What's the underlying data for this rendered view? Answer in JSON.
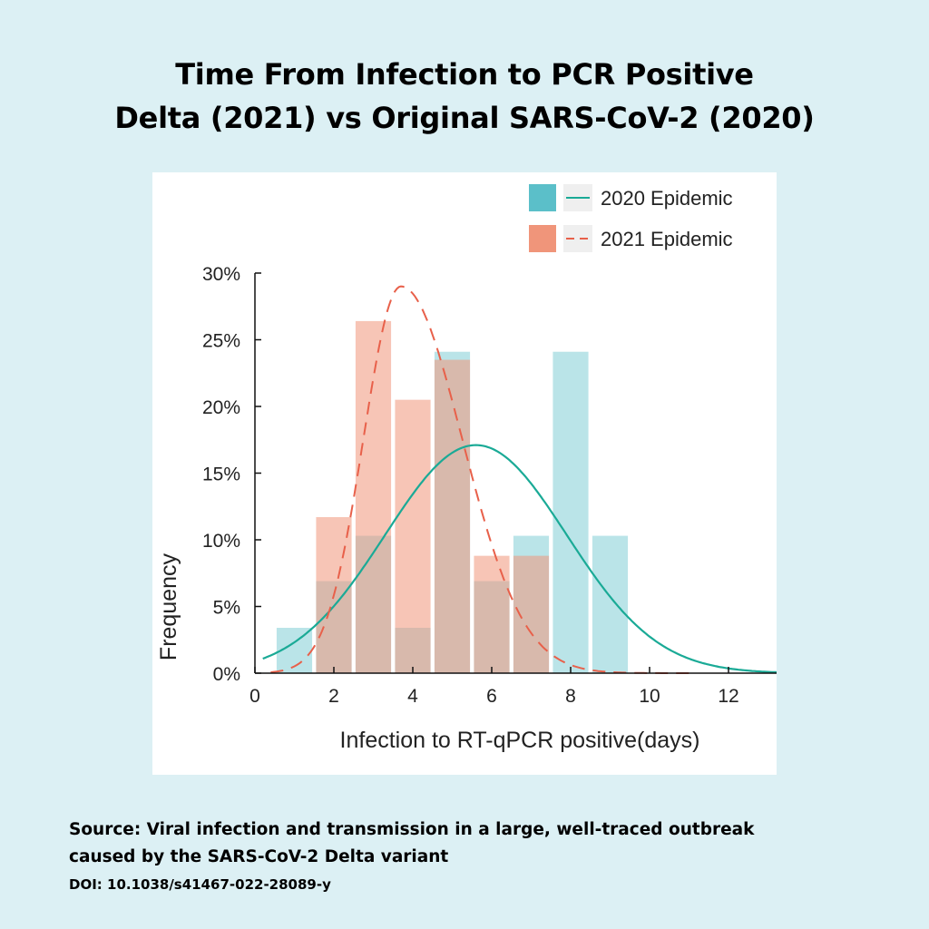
{
  "header": {
    "title_line1": "Time From Infection to PCR Positive",
    "title_line2": "Delta (2021) vs Original SARS-CoV-2 (2020)"
  },
  "footer": {
    "source_line1": "Source: Viral infection and transmission in a large, well-traced outbreak",
    "source_line2": "caused by the SARS-CoV-2 Delta variant",
    "doi": "DOI: 10.1038/s41467-022-28089-y"
  },
  "chart_data": {
    "type": "bar",
    "xlabel": "Infection to RT-qPCR positive(days)",
    "ylabel": "Frequency",
    "xlim": [
      0,
      13.3
    ],
    "ylim": [
      0,
      30
    ],
    "xticks": [
      0,
      2,
      4,
      6,
      8,
      10,
      12
    ],
    "yticks": [
      "0%",
      "5%",
      "10%",
      "15%",
      "20%",
      "25%",
      "30%"
    ],
    "yticks_values": [
      0,
      5,
      10,
      15,
      20,
      25,
      30
    ],
    "bin_width": 0.9,
    "legend_position": "top-right",
    "grid": false,
    "series": [
      {
        "name": "2020 Epidemic",
        "color": "#5bbfc9",
        "curve_color": "#1aaa96",
        "curve_style": "solid",
        "bins": [
          {
            "x": 1,
            "value": 3.4
          },
          {
            "x": 2,
            "value": 6.9
          },
          {
            "x": 3,
            "value": 10.3
          },
          {
            "x": 4,
            "value": 3.4
          },
          {
            "x": 5,
            "value": 24.1
          },
          {
            "x": 6,
            "value": 6.9
          },
          {
            "x": 7,
            "value": 10.3
          },
          {
            "x": 8,
            "value": 24.1
          },
          {
            "x": 9,
            "value": 10.3
          }
        ],
        "curve": {
          "mean": 5.6,
          "sd": 2.3,
          "peak": 17.1
        }
      },
      {
        "name": "2021 Epidemic",
        "color": "#f0957a",
        "curve_color": "#e8604a",
        "curve_style": "dashed",
        "bins": [
          {
            "x": 2,
            "value": 11.7
          },
          {
            "x": 3,
            "value": 26.4
          },
          {
            "x": 4,
            "value": 20.5
          },
          {
            "x": 5,
            "value": 23.5
          },
          {
            "x": 6,
            "value": 8.8
          },
          {
            "x": 7,
            "value": 8.8
          }
        ],
        "curve": {
          "mode": 3.7,
          "peak": 29,
          "sd_left": 0.95,
          "sd_right": 1.55
        }
      }
    ]
  }
}
